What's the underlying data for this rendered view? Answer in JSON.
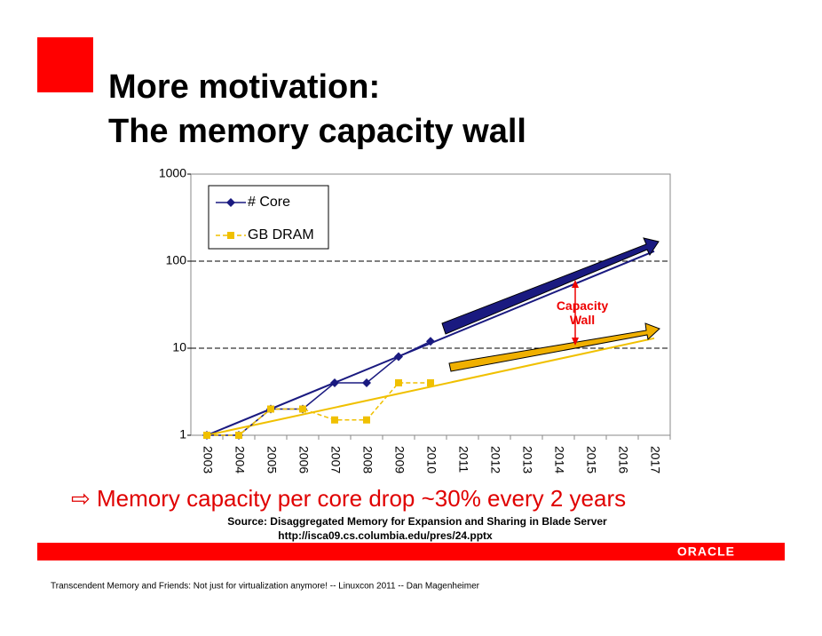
{
  "slide": {
    "title_line1": "More motivation:",
    "title_line2": "The memory capacity wall",
    "bullet": "⇨ Memory capacity per core drop ~30% every 2 years",
    "source_line1": "Source: Disaggregated Memory for Expansion and Sharing in Blade Server",
    "source_line2": "http://isca09.cs.columbia.edu/pres/24.pptx",
    "logo": "ORACLE",
    "footer": "Transcendent Memory and Friends: Not just for virtualization anymore! -- Linuxcon 2011 -- Dan Magenheimer"
  },
  "chart_data": {
    "type": "line",
    "categories": [
      "2003",
      "2004",
      "2005",
      "2006",
      "2007",
      "2008",
      "2009",
      "2010",
      "2011",
      "2012",
      "2013",
      "2014",
      "2015",
      "2016",
      "2017"
    ],
    "series": [
      {
        "name": "# Core",
        "color": "#1a1a80",
        "values": [
          1,
          1,
          2,
          2,
          4,
          4,
          8,
          12,
          null,
          null,
          null,
          null,
          null,
          null,
          null
        ]
      },
      {
        "name": "GB DRAM",
        "color": "#f0c000",
        "values": [
          1,
          1,
          2,
          2,
          1.5,
          1.5,
          4,
          4,
          null,
          null,
          null,
          null,
          null,
          null,
          null
        ]
      }
    ],
    "trendlines": [
      {
        "color": "#1a1a80",
        "values": [
          1,
          130
        ]
      },
      {
        "color": "#f0c000",
        "values": [
          1,
          13
        ]
      }
    ],
    "annotation": "Capacity\nWall",
    "log_scale": true,
    "ylim": [
      1,
      1000
    ],
    "yticks": [
      1,
      10,
      100,
      1000
    ],
    "grid": true
  }
}
